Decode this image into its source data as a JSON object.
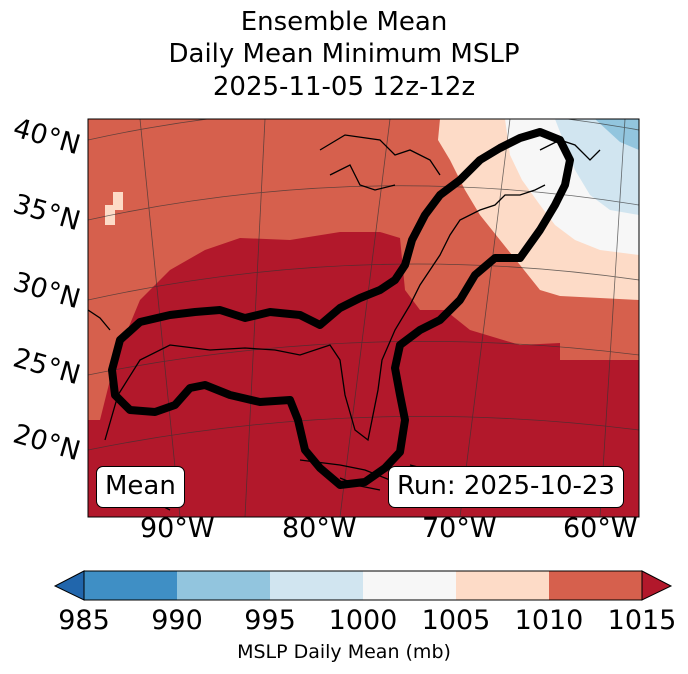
{
  "title": {
    "line1": "Ensemble Mean",
    "line2": "Daily Mean Minimum MSLP",
    "line3": "2025-11-05 12z-12z"
  },
  "map": {
    "lat_labels": [
      "40°N",
      "35°N",
      "30°N",
      "25°N",
      "20°N"
    ],
    "lon_labels": [
      "90°W",
      "80°W",
      "70°W",
      "60°W"
    ],
    "mean_box": "Mean",
    "run_box": "Run: 2025-10-23"
  },
  "colorbar": {
    "label": "MSLP Daily Mean (mb)",
    "ticks": [
      "985",
      "990",
      "995",
      "1000",
      "1005",
      "1010",
      "1015"
    ],
    "colors": [
      "#2166ac",
      "#3f8fc5",
      "#92c5de",
      "#d1e5f0",
      "#f7f7f7",
      "#fddbc7",
      "#d6604d",
      "#b2182b"
    ]
  },
  "chart_data": {
    "type": "heatmap",
    "title": "Ensemble Mean Daily Mean Minimum MSLP 2025-11-05 12z-12z",
    "variable": "MSLP Daily Mean (mb)",
    "bins": [
      985,
      990,
      995,
      1000,
      1005,
      1010,
      1015
    ],
    "lat_range": [
      15,
      40
    ],
    "lon_range": [
      -95,
      -60
    ]
  }
}
